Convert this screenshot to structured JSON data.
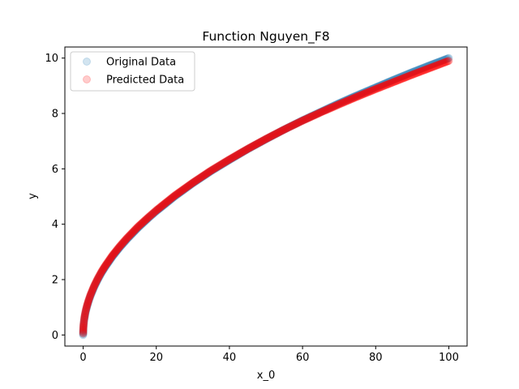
{
  "chart_data": {
    "type": "scatter",
    "title": "Function Nguyen_F8",
    "xlabel": "x_0",
    "ylabel": "y",
    "xlim": [
      -5,
      105
    ],
    "ylim": [
      -0.4,
      10.4
    ],
    "x_ticks": [
      0,
      20,
      40,
      60,
      80,
      100
    ],
    "y_ticks": [
      0,
      2,
      4,
      6,
      8,
      10
    ],
    "x_tick_labels": [
      "0",
      "20",
      "40",
      "60",
      "80",
      "100"
    ],
    "y_tick_labels": [
      "0",
      "2",
      "4",
      "6",
      "8",
      "10"
    ],
    "grid": false,
    "legend_position": "top-left",
    "series": [
      {
        "name": "Original Data",
        "color": "#1f77b4",
        "opacity": 0.2,
        "x": [
          0.0,
          0.05,
          0.1,
          0.2,
          0.3,
          0.5,
          0.7,
          1.0,
          1.5,
          2.0,
          3.0,
          4.0,
          5.0,
          6.0,
          8.0,
          10.0,
          12.0,
          15.0,
          18.0,
          20.0,
          25.0,
          30.0,
          35.0,
          40.0,
          45.0,
          50.0,
          55.0,
          60.0,
          65.0,
          70.0,
          75.0,
          80.0,
          85.0,
          90.0,
          95.0,
          100.0
        ],
        "y": [
          0.0,
          0.22,
          0.32,
          0.45,
          0.55,
          0.71,
          0.84,
          1.0,
          1.22,
          1.41,
          1.73,
          2.0,
          2.24,
          2.45,
          2.83,
          3.16,
          3.46,
          3.87,
          4.24,
          4.47,
          5.0,
          5.48,
          5.92,
          6.32,
          6.71,
          7.07,
          7.42,
          7.75,
          8.06,
          8.37,
          8.66,
          8.94,
          9.22,
          9.49,
          9.75,
          10.0
        ]
      },
      {
        "name": "Predicted Data",
        "color": "#ff0000",
        "opacity": 0.2,
        "x": [
          0.0,
          0.05,
          0.1,
          0.2,
          0.3,
          0.5,
          0.7,
          1.0,
          1.5,
          2.0,
          3.0,
          4.0,
          5.0,
          6.0,
          8.0,
          10.0,
          12.0,
          15.0,
          18.0,
          20.0,
          25.0,
          30.0,
          35.0,
          40.0,
          45.0,
          50.0,
          55.0,
          60.0,
          65.0,
          70.0,
          75.0,
          80.0,
          85.0,
          90.0,
          95.0,
          100.0
        ],
        "y": [
          0.05,
          0.25,
          0.36,
          0.49,
          0.59,
          0.75,
          0.88,
          1.04,
          1.26,
          1.45,
          1.77,
          2.04,
          2.28,
          2.49,
          2.87,
          3.2,
          3.5,
          3.91,
          4.27,
          4.5,
          5.03,
          5.5,
          5.94,
          6.34,
          6.72,
          7.08,
          7.42,
          7.74,
          8.04,
          8.33,
          8.61,
          8.88,
          9.14,
          9.4,
          9.65,
          9.9
        ]
      }
    ]
  }
}
